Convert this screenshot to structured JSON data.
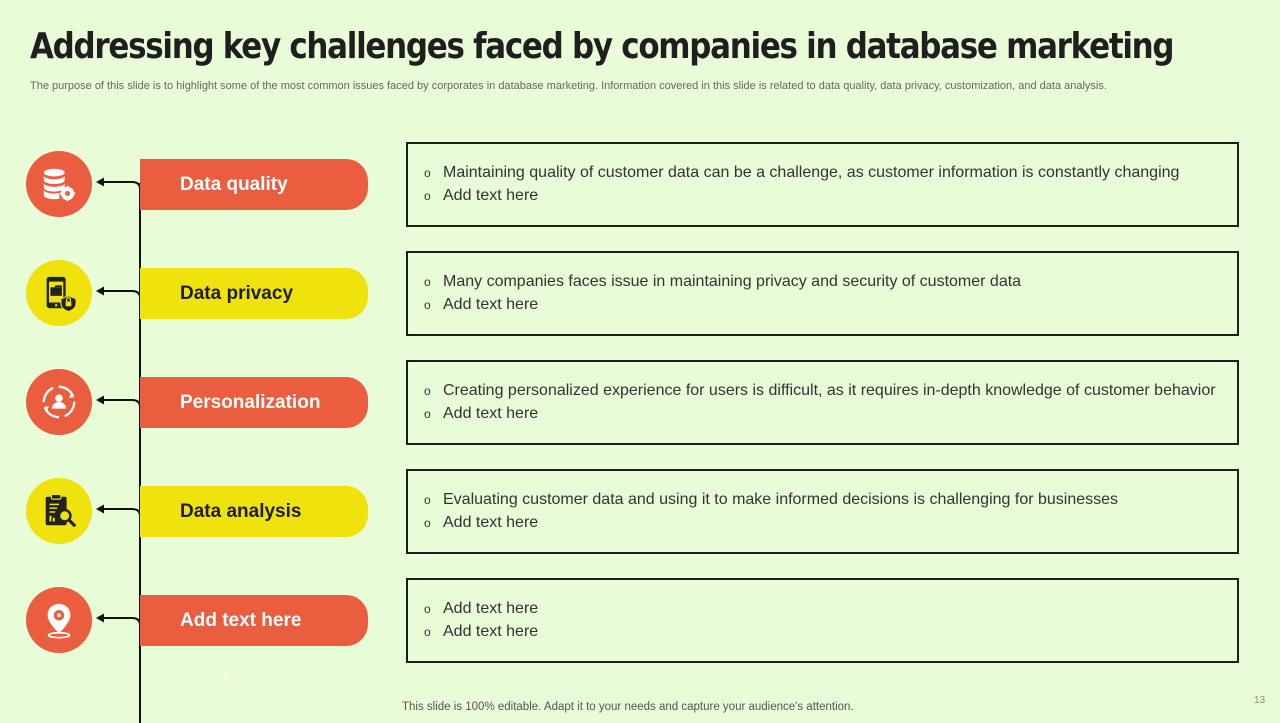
{
  "slide": {
    "title": "Addressing key challenges faced by companies in database marketing",
    "subtitle": "The purpose of this slide is to highlight some of the most common issues faced by corporates in database marketing. Information covered in this slide is related to data quality, data privacy, customization, and data analysis.",
    "footer": "This slide is 100% editable. Adapt it to your needs and capture your audience's attention.",
    "page_number": "13",
    "bullet_marker": "o",
    "plus_glyph": "+"
  },
  "colors": {
    "background": "#e8fcd8",
    "orange": "#ea5d3f",
    "yellow": "#f0e20c",
    "border": "#1c1c1c"
  },
  "challenges": [
    {
      "label": "Data quality",
      "icon": "database-gear-icon",
      "color": "orange",
      "bullets": [
        "Maintaining quality of customer data can be a challenge, as customer information is constantly  changing",
        "Add text here"
      ]
    },
    {
      "label": "Data privacy",
      "icon": "mobile-lock-icon",
      "color": "yellow",
      "bullets": [
        "Many companies faces issue in maintaining privacy and security of customer data",
        "Add text here"
      ]
    },
    {
      "label": "Personalization",
      "icon": "user-cycle-icon",
      "color": "orange",
      "bullets": [
        "Creating personalized experience for users is difficult, as it requires in-depth knowledge of customer behavior",
        "Add text here"
      ]
    },
    {
      "label": "Data analysis",
      "icon": "clipboard-magnifier-icon",
      "color": "yellow",
      "bullets": [
        "Evaluating customer data and using it to make informed decisions is challenging for businesses",
        "Add text here"
      ]
    },
    {
      "label": "Add text here",
      "icon": "location-pin-icon",
      "color": "orange",
      "bullets": [
        "Add text here",
        "Add text here"
      ]
    }
  ]
}
